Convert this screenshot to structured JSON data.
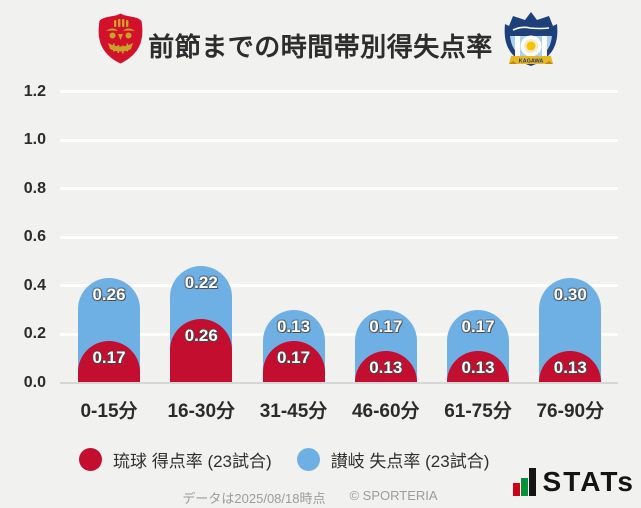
{
  "header": {
    "title": "前節までの時間帯別得失点率",
    "home_team": "琉球",
    "away_team": "讃岐"
  },
  "chart_data": {
    "type": "bar",
    "stacked": true,
    "title": "前節までの時間帯別得失点率",
    "categories": [
      "0-15分",
      "16-30分",
      "31-45分",
      "46-60分",
      "61-75分",
      "76-90分"
    ],
    "series": [
      {
        "name": "琉球 得点率 (23試合)",
        "color": "#c30e2f",
        "values": [
          0.17,
          0.26,
          0.17,
          0.13,
          0.13,
          0.13
        ]
      },
      {
        "name": "讃岐 失点率 (23試合)",
        "color": "#6fb0e4",
        "values": [
          0.26,
          0.22,
          0.13,
          0.17,
          0.17,
          0.3
        ]
      }
    ],
    "xlabel": "",
    "ylabel": "",
    "ylim": [
      0,
      1.3
    ],
    "yticks": [
      0.0,
      0.2,
      0.4,
      0.6,
      0.8,
      1.0,
      1.2
    ],
    "grid": true,
    "value_labels": true,
    "legend_position": "bottom"
  },
  "footer": {
    "data_note": "データは2025/08/18時点",
    "copyright": "© SPORTERIA",
    "brand": "STATs"
  },
  "colors": {
    "background": "#f1f1f0",
    "home": "#c30e2f",
    "away": "#6fb0e4",
    "grid": "#ffffff",
    "baseline": "#d6d6d4",
    "stats_red": "#d0021b",
    "stats_green": "#00913a",
    "stats_black": "#141414"
  }
}
